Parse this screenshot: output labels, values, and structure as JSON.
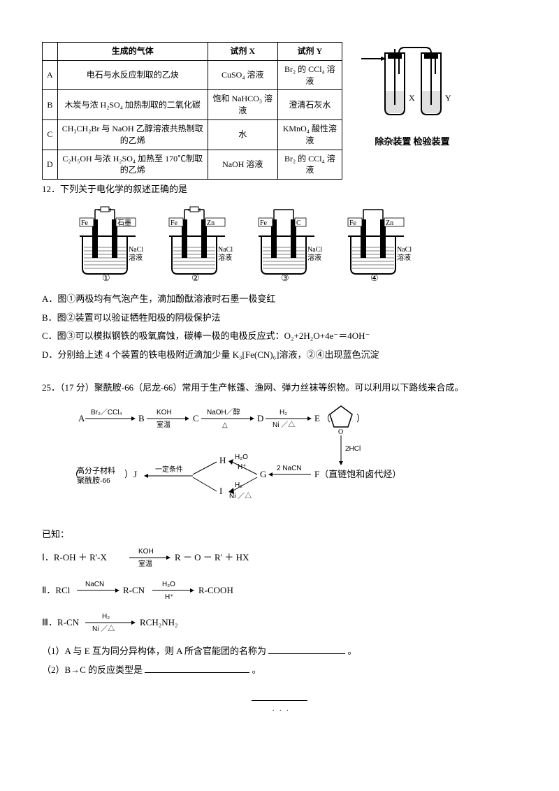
{
  "table": {
    "headers": [
      "",
      "生成的气体",
      "试剂 X",
      "试剂 Y"
    ],
    "rows": [
      [
        "A",
        "电石与水反应制取的乙炔",
        "CuSO₄ 溶液",
        "Br₂ 的 CCl₄ 溶液"
      ],
      [
        "B",
        "木炭与浓 H₂SO₄ 加热制取的二氧化碳",
        "饱和 NaHCO₃ 溶液",
        "澄清石灰水"
      ],
      [
        "C",
        "CH₃CH₂Br 与 NaOH 乙醇溶液共热制取的乙烯",
        "水",
        "KMnO₄ 酸性溶液"
      ],
      [
        "D",
        "C₂H₅OH 与浓 H₂SO₄ 加热至 170℃制取的乙烯",
        "NaOH 溶液",
        "Br₂ 的 CCl₄ 溶液"
      ]
    ]
  },
  "apparatusCaption": "除杂装置 检验装置",
  "apparatusLabels": {
    "x": "X",
    "y": "Y"
  },
  "q12": {
    "stem": "12．下列关于电化学的叙述正确的是",
    "beakers": [
      {
        "left": "Fe",
        "right": "石墨",
        "sol": "NaCl\n溶液",
        "num": "①",
        "power": true
      },
      {
        "left": "Fe",
        "right": "Zn",
        "sol": "NaCl\n溶液",
        "num": "②",
        "power": true
      },
      {
        "left": "Fe",
        "right": "C",
        "sol": "NaCl\n溶液",
        "num": "③",
        "power": false
      },
      {
        "left": "Fe",
        "right": "Zn",
        "sol": "NaCl\n溶液",
        "num": "④",
        "power": false
      }
    ],
    "opts": {
      "A": "A．图①两极均有气泡产生，滴加酚酞溶液时石墨一极变红",
      "B": "B．图②装置可以验证牺牲阳极的阴极保护法",
      "C": "C．图③可以模拟钢铁的吸氧腐蚀，碳棒一极的电极反应式：O₂+2H₂O+4e⁻＝4OH⁻",
      "D": "D．分别给上述 4 个装置的铁电极附近滴加少量 K₃[Fe(CN)₆]溶液，②④出现蓝色沉淀"
    }
  },
  "q25": {
    "stem": "25．（17 分）聚酰胺-66（尼龙-66）常用于生产帐篷、渔网、弹力丝袜等织物。可以利用以下路线来合成。",
    "flow": {
      "A": "A",
      "B": "B",
      "C": "C",
      "D": "D",
      "E": "E",
      "H": "H",
      "I": "I",
      "G": "G",
      "F": "F（直链饱和卤代烃）",
      "Jleft": "（",
      "Jinner": "高分子材料\n聚酰胺-66",
      "Jright": "）J",
      "ringlabel": "（",
      "ringO": "O",
      "ringEnd": "）",
      "e1t": "Br₂／CCl₄",
      "e2t": "KOH",
      "e2b": "室温",
      "e3t": "NaOH／醇",
      "e3b": "△",
      "e4t": "H₂",
      "e4b": "Ni ／△",
      "e5": "2HCl",
      "e6t": "2 NaCN",
      "e7t": "H₂O",
      "e7b": "H⁺",
      "e8t": "H₂",
      "e8b": "Ni ／△",
      "e9": "一定条件"
    },
    "known": "已知：",
    "k1a": "Ⅰ．R-OH ＋ R'-X",
    "k1top": "KOH",
    "k1bot": "室温",
    "k1b": "R － O － R' ＋ HX",
    "k2a": "Ⅱ．RCl",
    "k2t1": "NaCN",
    "k2m": "R-CN",
    "k2t2": "H₂O",
    "k2b2": "H⁺",
    "k2c": "R-COOH",
    "k3a": "Ⅲ．R-CN",
    "k3t": "H₂",
    "k3b": "Ni ／△",
    "k3c": "RCH₂NH₂",
    "sub1": "（1）A 与 E 互为同分异构体，则 A 所含官能团的名称为",
    "sub1end": "。",
    "sub2": "（2）B→C 的反应类型是",
    "sub2end": "。"
  },
  "svgColors": {
    "stroke": "#000000",
    "fill": "#ffffff",
    "liquid": "#dddddd"
  }
}
